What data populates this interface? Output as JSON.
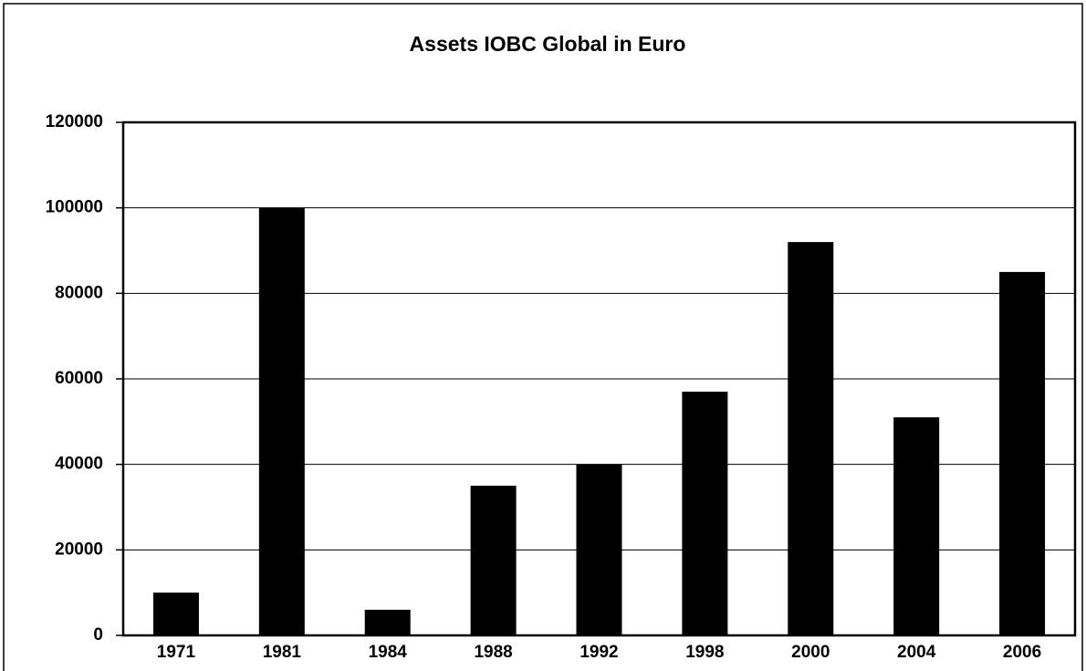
{
  "chart_data": {
    "type": "bar",
    "title": "Assets IOBC Global in Euro",
    "categories": [
      "1971",
      "1981",
      "1984",
      "1988",
      "1992",
      "1998",
      "2000",
      "2004",
      "2006"
    ],
    "values": [
      10000,
      100000,
      6000,
      35000,
      40000,
      57000,
      92000,
      51000,
      85000
    ],
    "color": "#000000",
    "ylim": [
      0,
      120000
    ],
    "yticks": [
      0,
      20000,
      40000,
      60000,
      80000,
      100000,
      120000
    ],
    "grid": true
  }
}
